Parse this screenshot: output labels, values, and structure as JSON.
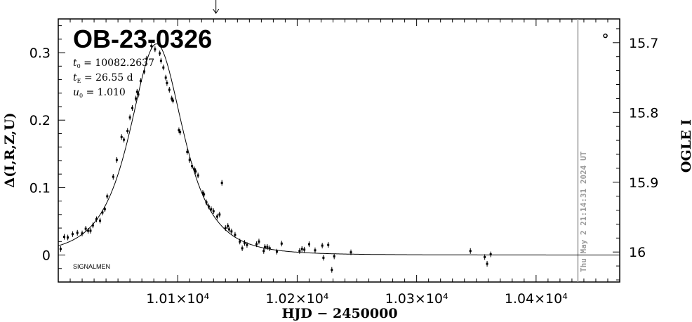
{
  "chart_data": {
    "type": "scatter",
    "title": "OB-23-0326",
    "xlabel": "HJD − 2450000",
    "ylabel_left": "Δ(I,R,Z,U)",
    "ylabel_right": "OGLE I",
    "xlim": [
      10000,
      10470
    ],
    "ylim_left": [
      -0.04,
      0.35
    ],
    "ylim_right": [
      16.043,
      15.666
    ],
    "x_ticks": [
      10100,
      10200,
      10300,
      10400
    ],
    "x_tick_labels": [
      "1.01×10⁴",
      "1.02×10⁴",
      "1.03×10⁴",
      "1.04×10⁴"
    ],
    "y_ticks_left": [
      0,
      0.1,
      0.2,
      0.3
    ],
    "y_tick_labels_left": [
      "0",
      "0.1",
      "0.2",
      "0.3"
    ],
    "y_ticks_right": [
      15.7,
      15.8,
      15.9,
      16
    ],
    "y_tick_labels_right": [
      "15.7",
      "15.8",
      "15.9",
      "16"
    ],
    "params": [
      {
        "sym": "t",
        "sub": "0",
        "text": " = 10082.2637"
      },
      {
        "sym": "t",
        "sub": "E",
        "text": " = 26.55 d"
      },
      {
        "sym": "u",
        "sub": "0",
        "text": " = 1.010"
      }
    ],
    "model": {
      "t0": 10082.2637,
      "tE": 26.55,
      "u0": 1.01
    },
    "footer_label": "SIGNALMEN",
    "timestamp": "Thu May  2 21:14:31 2024 UT",
    "now_x": 10435,
    "alert_arrow_x": 10132,
    "open_marker": {
      "x": 10458,
      "y": 0.325
    },
    "series": [
      {
        "name": "",
        "points": [
          [
            10002,
            0.009
          ],
          [
            10005,
            0.027
          ],
          [
            10008,
            0.026
          ],
          [
            10012,
            0.031
          ],
          [
            10016,
            0.033
          ],
          [
            10020,
            0.032
          ],
          [
            10023,
            0.039
          ],
          [
            10025,
            0.036
          ],
          [
            10027,
            0.036
          ],
          [
            10029,
            0.044
          ],
          [
            10032,
            0.053
          ],
          [
            10035,
            0.051
          ],
          [
            10037,
            0.063
          ],
          [
            10039,
            0.068
          ],
          [
            10041,
            0.087
          ],
          [
            10046,
            0.116
          ],
          [
            10049,
            0.141
          ],
          [
            10053,
            0.175
          ],
          [
            10055,
            0.171
          ],
          [
            10058,
            0.184
          ],
          [
            10060,
            0.204
          ],
          [
            10062,
            0.218
          ],
          [
            10065,
            0.232
          ],
          [
            10066,
            0.242
          ],
          [
            10067,
            0.238
          ],
          [
            10069,
            0.258
          ],
          [
            10072,
            0.272
          ],
          [
            10074,
            0.291
          ],
          [
            10078,
            0.31
          ],
          [
            10081,
            0.305
          ],
          [
            10085,
            0.299
          ],
          [
            10086,
            0.288
          ],
          [
            10088,
            0.278
          ],
          [
            10090,
            0.263
          ],
          [
            10091,
            0.255
          ],
          [
            10093,
            0.245
          ],
          [
            10095,
            0.232
          ],
          [
            10096,
            0.229
          ],
          [
            10101,
            0.185
          ],
          [
            10102,
            0.182
          ],
          [
            10108,
            0.153
          ],
          [
            10110,
            0.141
          ],
          [
            10112,
            0.132
          ],
          [
            10114,
            0.127
          ],
          [
            10115,
            0.124
          ],
          [
            10117,
            0.118
          ],
          [
            10121,
            0.092
          ],
          [
            10122,
            0.09
          ],
          [
            10124,
            0.078
          ],
          [
            10126,
            0.072
          ],
          [
            10128,
            0.068
          ],
          [
            10130,
            0.065
          ],
          [
            10133,
            0.057
          ],
          [
            10135,
            0.06
          ],
          [
            10137,
            0.107
          ],
          [
            10140,
            0.04
          ],
          [
            10142,
            0.043
          ],
          [
            10143,
            0.038
          ],
          [
            10145,
            0.035
          ],
          [
            10148,
            0.03
          ],
          [
            10152,
            0.02
          ],
          [
            10154,
            0.01
          ],
          [
            10156,
            0.018
          ],
          [
            10158,
            0.015
          ],
          [
            10166,
            0.016
          ],
          [
            10168,
            0.02
          ],
          [
            10172,
            0.006
          ],
          [
            10173,
            0.012
          ],
          [
            10175,
            0.012
          ],
          [
            10177,
            0.01
          ],
          [
            10183,
            0.005
          ],
          [
            10187,
            0.017
          ],
          [
            10202,
            0.006
          ],
          [
            10204,
            0.009
          ],
          [
            10206,
            0.008
          ],
          [
            10210,
            0.016
          ],
          [
            10215,
            0.007
          ],
          [
            10221,
            0.014
          ],
          [
            10222,
            -0.004
          ],
          [
            10226,
            0.015
          ],
          [
            10229,
            -0.022
          ],
          [
            10231,
            -0.002
          ],
          [
            10245,
            0.004
          ],
          [
            10345,
            0.006
          ],
          [
            10357,
            -0.003
          ],
          [
            10359,
            -0.013
          ],
          [
            10362,
            0.001
          ]
        ]
      }
    ]
  }
}
